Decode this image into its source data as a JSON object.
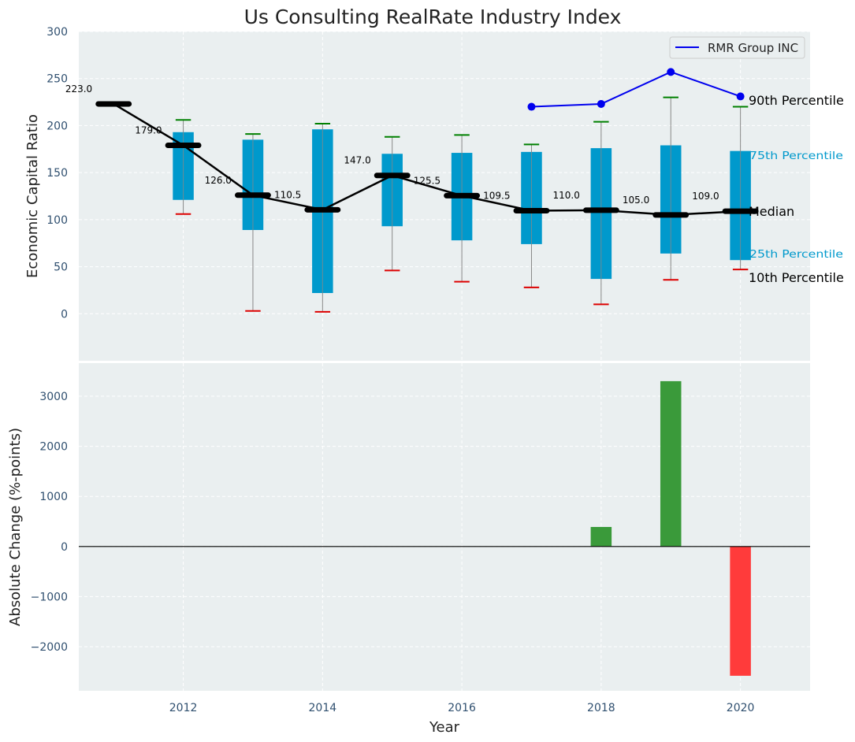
{
  "chart_data": [
    {
      "type": "box",
      "title": "Us Consulting RealRate Industry Index",
      "xlabel": "",
      "ylabel": "Economic Capital Ratio",
      "xlim": [
        2010.5,
        2021
      ],
      "ylim": [
        -50,
        300
      ],
      "yticks": [
        0,
        50,
        100,
        150,
        200,
        250,
        300
      ],
      "grid": true,
      "years": [
        2011,
        2012,
        2013,
        2014,
        2015,
        2016,
        2017,
        2018,
        2019,
        2020
      ],
      "p10": [
        null,
        106,
        3,
        2,
        46,
        34,
        28,
        10,
        36,
        47
      ],
      "p25": [
        null,
        121,
        89,
        22,
        93,
        78,
        74,
        37,
        64,
        57
      ],
      "median": [
        223.0,
        179.0,
        126.0,
        110.5,
        147.0,
        125.5,
        109.5,
        110.0,
        105.0,
        109.0
      ],
      "median_labels": [
        "223.0",
        "179.0",
        "126.0",
        "110.5",
        "147.0",
        "125.5",
        "109.5",
        "110.0",
        "105.0",
        "109.0"
      ],
      "p75": [
        null,
        193,
        185,
        196,
        170,
        171,
        172,
        176,
        179,
        173
      ],
      "p90": [
        null,
        206,
        191,
        202,
        188,
        190,
        180,
        204,
        230,
        220
      ],
      "series": [
        {
          "name": "RMR Group INC",
          "color": "#0000ee",
          "x": [
            2017,
            2018,
            2019,
            2020
          ],
          "values": [
            220,
            223,
            257,
            231
          ]
        }
      ],
      "legend": {
        "position": "top-right",
        "entries": [
          "RMR Group INC"
        ]
      },
      "annotations": {
        "p90": "90th Percentile",
        "p75": "75th Percentile",
        "median": "Median",
        "p25": "25th Percentile",
        "p10": "10th Percentile"
      }
    },
    {
      "type": "bar",
      "xlabel": "Year",
      "ylabel": "Absolute Change (%-points)",
      "xlim": [
        2010.5,
        2021
      ],
      "ylim": [
        -2880,
        3660
      ],
      "xticks": [
        2012,
        2014,
        2016,
        2018,
        2020
      ],
      "yticks": [
        -2000,
        -1000,
        0,
        1000,
        2000,
        3000
      ],
      "ytick_labels": [
        "−2000",
        "−1000",
        "0",
        "1000",
        "2000",
        "3000"
      ],
      "grid": true,
      "x": [
        2018,
        2019,
        2020
      ],
      "values": [
        390,
        3300,
        -2580
      ]
    }
  ],
  "colors": {
    "plot_bg": "#eaeff0",
    "box": "#0099cc",
    "whisker": "#888888",
    "p90_cap": "#008000",
    "p10_cap": "#dd0000",
    "median": "#000000",
    "positive": "#3a9a3a",
    "negative": "#ff3b3b"
  }
}
